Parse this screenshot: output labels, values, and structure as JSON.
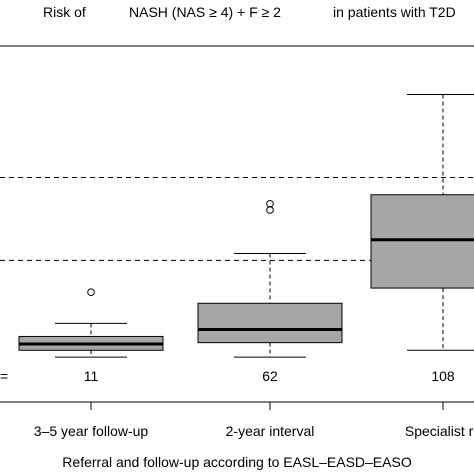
{
  "chart_data": {
    "type": "box",
    "title_parts": {
      "risk_of": "Risk of",
      "condition": "NASH (NAS ≥ 4) + F ≥ 2",
      "population": "in patients with T2D"
    },
    "xlabel": "Referral and follow-up according to EASL–EASD–EASO",
    "ylabel": "",
    "n_label": "=",
    "categories": [
      "3–5 year follow-up",
      "2-year interval",
      "Specialist re"
    ],
    "n_values": [
      "11",
      "62",
      "108"
    ],
    "boxes": [
      {
        "whisker_low": 2.0,
        "q1": 3.0,
        "median": 3.9,
        "q3": 5.0,
        "whisker_high": 6.9,
        "outliers": [
          11.4
        ]
      },
      {
        "whisker_low": 2.0,
        "q1": 4.1,
        "median": 6.0,
        "q3": 9.8,
        "whisker_high": 17.0,
        "outliers": [
          23.3,
          24.2
        ]
      },
      {
        "whisker_low": 3.0,
        "q1": 12.0,
        "median": 19.0,
        "q3": 25.5,
        "whisker_high": 40.0,
        "outliers": []
      }
    ],
    "reference_lines": [
      16.0,
      28.0
    ],
    "ylim": [
      0,
      45
    ],
    "grid": false,
    "colors": {
      "box_fill": "#a6a6a6",
      "line": "#000000",
      "reference_line": "#000000"
    }
  }
}
